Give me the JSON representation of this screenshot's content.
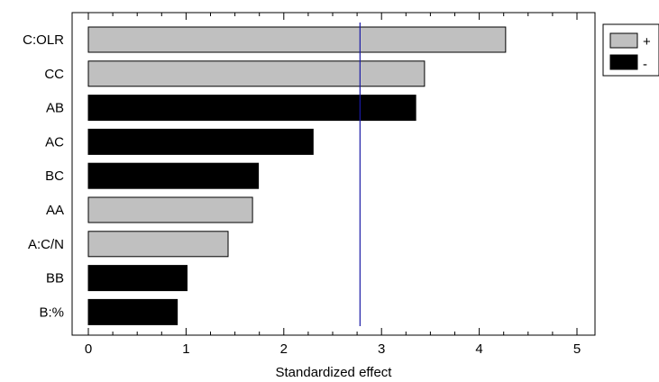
{
  "chart_data": {
    "type": "bar",
    "orientation": "horizontal",
    "title": "",
    "xlabel": "Standardized effect",
    "ylabel": "",
    "xlim": [
      0,
      5
    ],
    "x_ticks": [
      0,
      1,
      2,
      3,
      4,
      5
    ],
    "reference_line": 2.78,
    "categories": [
      "C:OLR",
      "CC",
      "AB",
      "AC",
      "BC",
      "AA",
      "A:C/N",
      "BB",
      "B:%"
    ],
    "values": [
      4.27,
      3.44,
      3.35,
      2.3,
      1.74,
      1.68,
      1.43,
      1.01,
      0.91
    ],
    "signs": [
      "+",
      "+",
      "-",
      "-",
      "-",
      "+",
      "+",
      "-",
      "-"
    ],
    "legend": [
      {
        "label": "+",
        "color": "#c0c0c0"
      },
      {
        "label": "-",
        "color": "#000000"
      }
    ],
    "legend_position": "top-right",
    "colors": {
      "positive": "#c0c0c0",
      "negative": "#000000",
      "reference_line": "#1a1aa6"
    }
  }
}
